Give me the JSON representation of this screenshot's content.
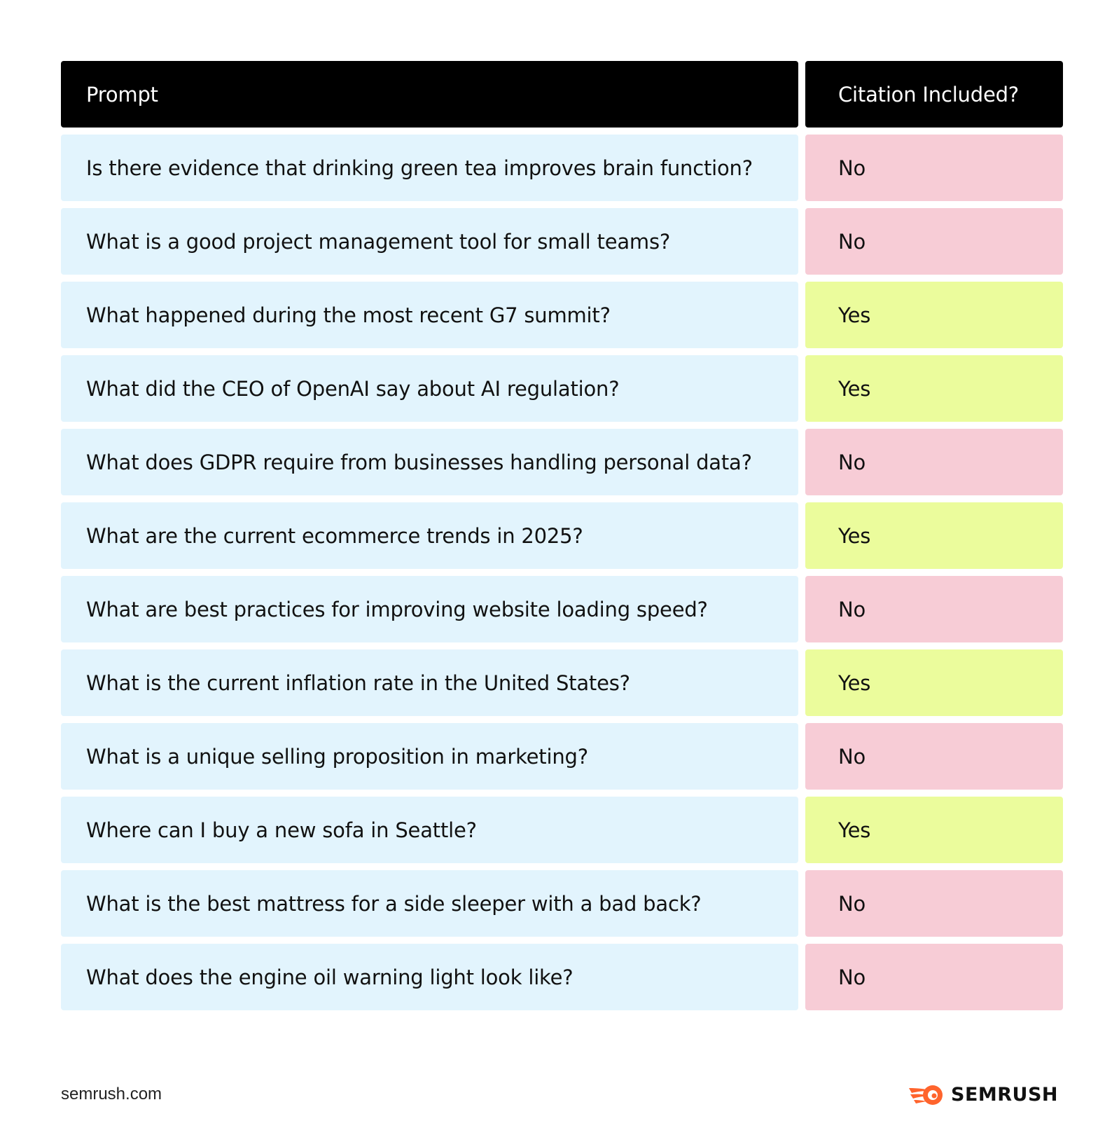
{
  "table": {
    "header": {
      "prompt": "Prompt",
      "citation": "Citation Included?"
    },
    "rows": [
      {
        "prompt": "Is there evidence that drinking green tea improves brain function?",
        "citation": "No"
      },
      {
        "prompt": "What is a good project management tool for small teams?",
        "citation": "No"
      },
      {
        "prompt": "What happened during the most recent G7 summit?",
        "citation": "Yes"
      },
      {
        "prompt": "What did the CEO of OpenAI say about AI regulation?",
        "citation": "Yes"
      },
      {
        "prompt": "What does GDPR require from businesses handling personal data?",
        "citation": "No"
      },
      {
        "prompt": "What are the current ecommerce trends in 2025?",
        "citation": "Yes"
      },
      {
        "prompt": "What are best practices for improving website loading speed?",
        "citation": "No"
      },
      {
        "prompt": "What is the current inflation rate in the United States?",
        "citation": "Yes"
      },
      {
        "prompt": "What is a unique selling proposition in marketing?",
        "citation": "No"
      },
      {
        "prompt": "Where can I buy a new sofa in Seattle?",
        "citation": "Yes"
      },
      {
        "prompt": "What is the best mattress for a side sleeper with a bad back?",
        "citation": "No"
      },
      {
        "prompt": "What does the engine oil warning light look like?",
        "citation": "No"
      }
    ]
  },
  "colors": {
    "header_bg": "#000000",
    "prompt_bg": "#e2f4fd",
    "no_bg": "#f7ccd6",
    "yes_bg": "#ebfc9c",
    "brand_orange": "#ff642d"
  },
  "footer": {
    "site": "semrush.com",
    "brand_name": "SEMRUSH",
    "brand_icon": "semrush-flame-logo"
  }
}
